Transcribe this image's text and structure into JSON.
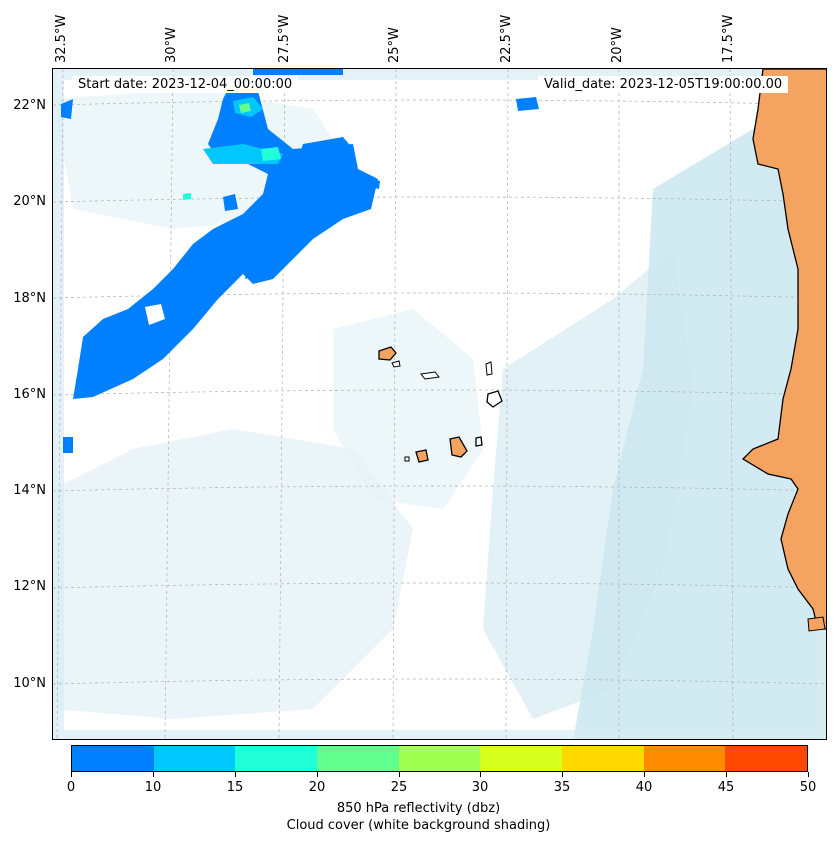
{
  "map": {
    "start_date": "Start date: 2023-12-04_00:00:00",
    "valid_date": "Valid_date: 2023-12-05T19:00:00.00",
    "lon_labels": [
      "32.5°W",
      "30°W",
      "27.5°W",
      "25°W",
      "22.5°W",
      "20°W",
      "17.5°W"
    ],
    "lat_labels": [
      "22°N",
      "20°N",
      "18°N",
      "16°N",
      "14°N",
      "12°N",
      "10°N"
    ],
    "colors": {
      "land": "#f4a460",
      "ocean": "#ffffff",
      "cloud_light": "#e6f3f7",
      "cloud_mid": "#cfe8f0",
      "cloud_dense": "#add8e6",
      "reflectivity_low": "#0080ff",
      "reflectivity_mid": "#00c8ff",
      "reflectivity_high": "#20ffd8",
      "reflectivity_peak": "#60ff90",
      "gridline": "#b0b0b0",
      "coastline": "#000000"
    }
  },
  "colorbar": {
    "ticks": [
      "0",
      "10",
      "15",
      "20",
      "25",
      "30",
      "35",
      "40",
      "45",
      "50"
    ],
    "colors": [
      "#0080ff",
      "#00c8ff",
      "#20ffd8",
      "#60ff90",
      "#a0ff50",
      "#d8ff20",
      "#ffd800",
      "#ff8c00",
      "#ff4800"
    ],
    "title_line1": "850 hPa reflectivity (dbz)",
    "title_line2": "Cloud cover (white background shading)"
  }
}
